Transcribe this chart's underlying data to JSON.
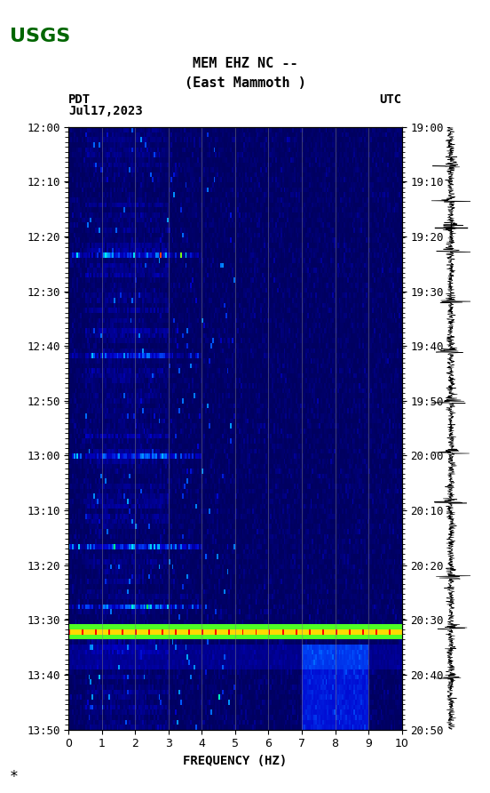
{
  "title_line1": "MEM EHZ NC --",
  "title_line2": "(East Mammoth )",
  "left_label": "PDT",
  "left_date": "Jul17,2023",
  "right_label": "UTC",
  "xlabel": "FREQUENCY (HZ)",
  "freq_min": 0,
  "freq_max": 10,
  "time_labels_left": [
    "12:00",
    "12:10",
    "12:20",
    "12:30",
    "12:40",
    "12:50",
    "13:00",
    "13:10",
    "13:20",
    "13:30",
    "13:40",
    "13:50"
  ],
  "time_labels_right": [
    "19:00",
    "19:10",
    "19:20",
    "19:30",
    "19:40",
    "19:50",
    "20:00",
    "20:10",
    "20:20",
    "20:30",
    "20:40",
    "20:50"
  ],
  "n_time": 120,
  "n_freq": 200,
  "hot_row": 100,
  "vertical_lines_freq": [
    1,
    2,
    3,
    4,
    5,
    6,
    7,
    8,
    9
  ],
  "background_color": "#ffffff",
  "spectrogram_bg": "#000080",
  "fig_width": 5.52,
  "fig_height": 8.92
}
